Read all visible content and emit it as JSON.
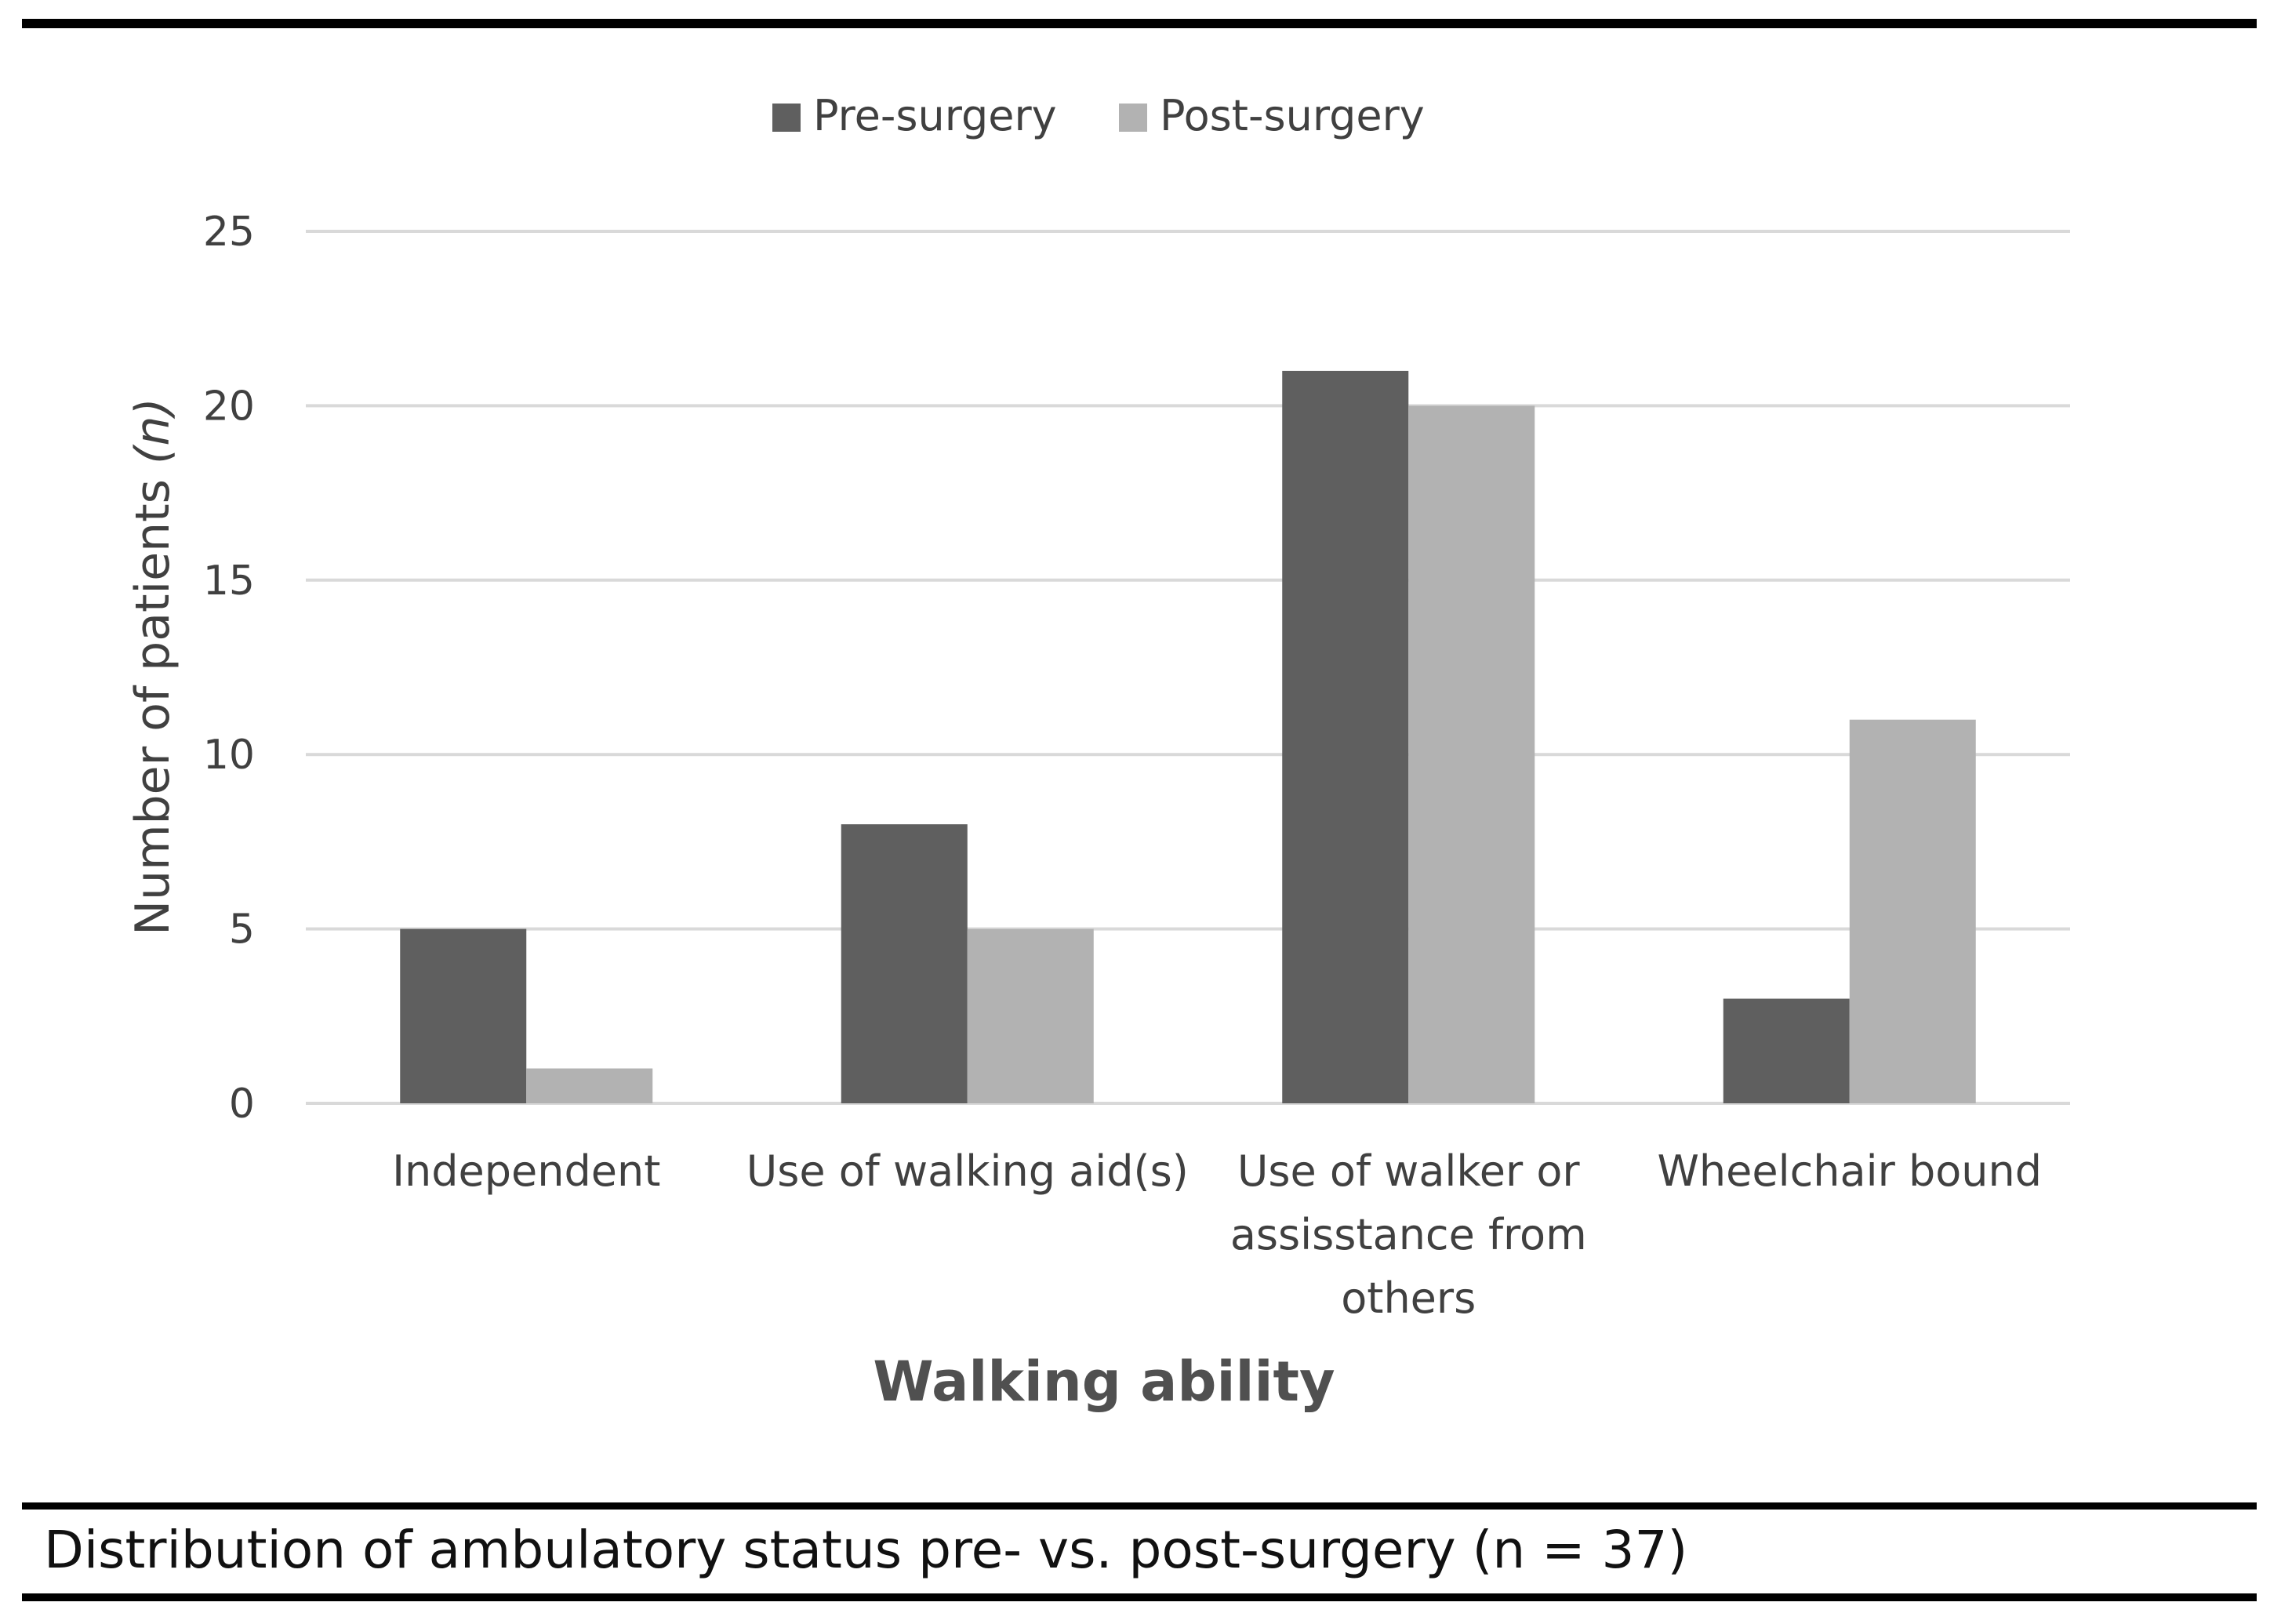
{
  "caption": "Distribution of ambulatory status pre- vs. post-surgery (n = 37)",
  "chart_data": {
    "type": "bar",
    "title": "",
    "xlabel": "Walking ability",
    "ylabel": "Number of patients (n)",
    "ylabel_main": "Number of patients ",
    "ylabel_italic": "(n)",
    "ylim": [
      0,
      25
    ],
    "yticks": [
      0,
      5,
      10,
      15,
      20,
      25
    ],
    "grid": true,
    "legend_position": "top-center",
    "categories": [
      [
        "Independent"
      ],
      [
        "Use of walking aid(s)"
      ],
      [
        "Use of walker or",
        "assisstance from",
        "others"
      ],
      [
        "Wheelchair bound"
      ]
    ],
    "series": [
      {
        "name": "Pre-surgery",
        "color": "#5f5f5f",
        "values": [
          5,
          8,
          21,
          3
        ]
      },
      {
        "name": "Post-surgery",
        "color": "#b2b2b2",
        "values": [
          1,
          5,
          20,
          11
        ]
      }
    ],
    "gridline_color": "#d9d9d9"
  }
}
